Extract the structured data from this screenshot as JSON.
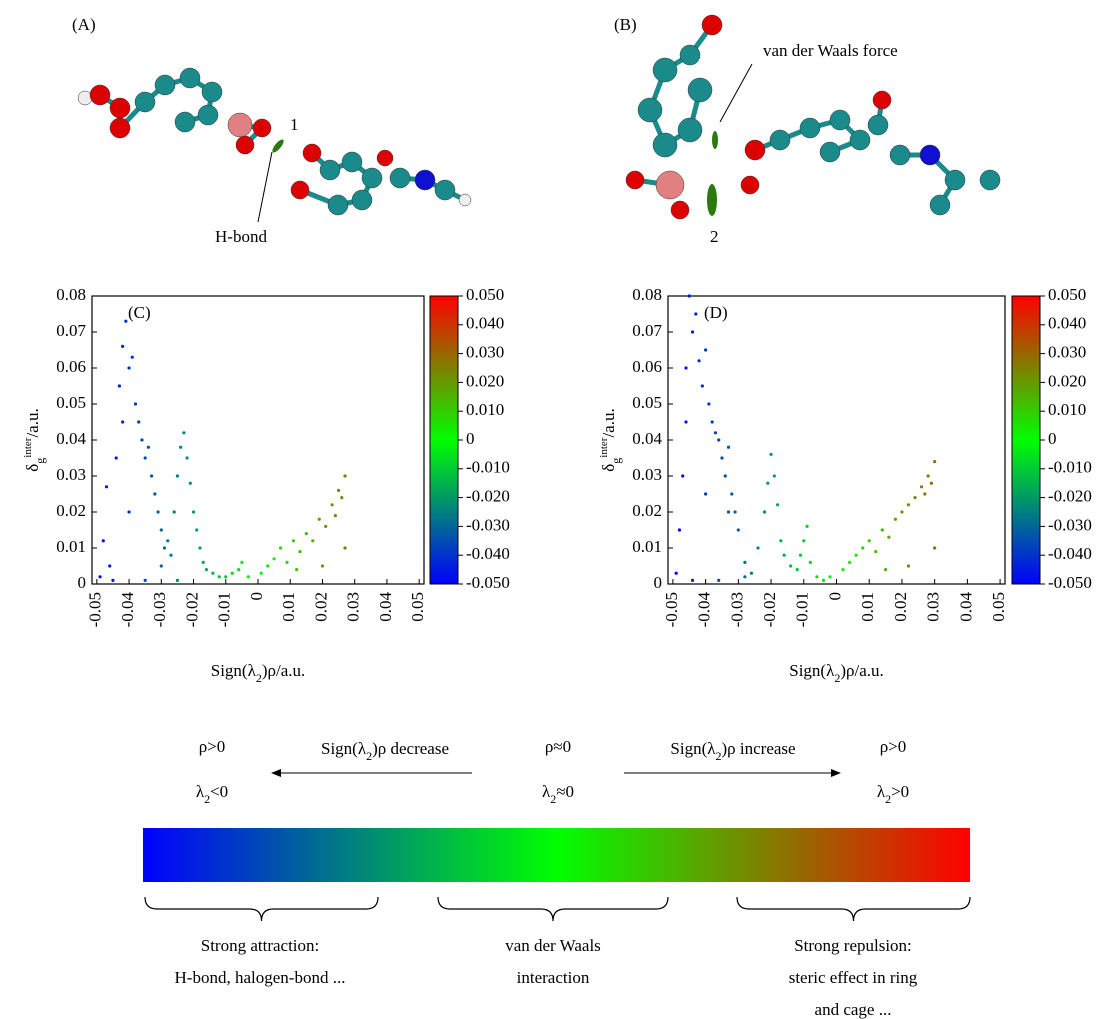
{
  "panels": {
    "a": {
      "label": "(A)",
      "bond_label": "1",
      "annotation": "H-bond"
    },
    "b": {
      "label": "(B)",
      "bond_label": "2",
      "annotation": "van der Waals force"
    }
  },
  "chart_data": [
    {
      "type": "scatter",
      "panel_label": "(C)",
      "x": [
        -0.049,
        -0.048,
        -0.047,
        -0.046,
        -0.044,
        -0.043,
        -0.042,
        -0.041,
        -0.04,
        -0.039,
        -0.038,
        -0.037,
        -0.036,
        -0.035,
        -0.034,
        -0.033,
        -0.032,
        -0.031,
        -0.03,
        -0.029,
        -0.028,
        -0.027,
        -0.026,
        -0.025,
        -0.024,
        -0.023,
        -0.022,
        -0.021,
        -0.02,
        -0.019,
        -0.018,
        -0.017,
        -0.016,
        -0.014,
        -0.012,
        -0.01,
        -0.008,
        -0.006,
        -0.005,
        -0.003,
        0.001,
        0.003,
        0.005,
        0.007,
        0.009,
        0.011,
        0.013,
        0.015,
        0.017,
        0.019,
        0.021,
        0.023,
        0.024,
        0.025,
        0.026,
        0.027,
        0.027,
        0.02,
        0.012,
        -0.045,
        -0.035,
        -0.025,
        -0.03,
        -0.04,
        -0.042
      ],
      "y": [
        0.002,
        0.012,
        0.027,
        0.005,
        0.035,
        0.055,
        0.066,
        0.073,
        0.06,
        0.063,
        0.05,
        0.045,
        0.04,
        0.035,
        0.038,
        0.03,
        0.025,
        0.02,
        0.015,
        0.01,
        0.012,
        0.008,
        0.02,
        0.03,
        0.038,
        0.042,
        0.035,
        0.028,
        0.02,
        0.015,
        0.01,
        0.006,
        0.004,
        0.003,
        0.002,
        0.002,
        0.003,
        0.004,
        0.006,
        0.002,
        0.003,
        0.005,
        0.007,
        0.01,
        0.006,
        0.012,
        0.009,
        0.014,
        0.012,
        0.018,
        0.016,
        0.022,
        0.019,
        0.026,
        0.024,
        0.03,
        0.01,
        0.005,
        0.004,
        0.001,
        0.001,
        0.001,
        0.005,
        0.02,
        0.045
      ],
      "xlim": [
        -0.0515,
        0.0515
      ],
      "xticks": [
        -0.05,
        -0.04,
        -0.03,
        -0.02,
        -0.01,
        0,
        0.01,
        0.02,
        0.03,
        0.04,
        0.05
      ],
      "ylim": [
        0,
        0.08
      ],
      "yticks": [
        0,
        0.01,
        0.02,
        0.03,
        0.04,
        0.05,
        0.06,
        0.07,
        0.08
      ],
      "xlabel": [
        "Sign(λ",
        "2",
        ")ρ/a.u."
      ],
      "ylabel": [
        "δ",
        "g",
        "inter",
        "/a.u."
      ],
      "colorbar": {
        "lim": [
          -0.05,
          0.05
        ],
        "colors": [
          "#0000ff",
          "#00ff00",
          "#ff0000"
        ],
        "ticks": [
          {
            "value": 0.05,
            "label": "0.050"
          },
          {
            "value": 0.04,
            "label": "0.040"
          },
          {
            "value": 0.03,
            "label": "0.030"
          },
          {
            "value": 0.02,
            "label": "0.020"
          },
          {
            "value": 0.01,
            "label": "0.010"
          },
          0,
          {
            "value": -0.01,
            "label": "-0.010"
          },
          {
            "value": -0.02,
            "label": "-0.020"
          },
          {
            "value": -0.03,
            "label": "-0.030"
          },
          {
            "value": -0.04,
            "label": "-0.040"
          },
          {
            "value": -0.05,
            "label": "-0.050"
          }
        ]
      }
    },
    {
      "type": "scatter",
      "panel_label": "(D)",
      "x": [
        -0.049,
        -0.048,
        -0.047,
        -0.046,
        -0.045,
        -0.044,
        -0.043,
        -0.042,
        -0.041,
        -0.04,
        -0.039,
        -0.038,
        -0.037,
        -0.036,
        -0.035,
        -0.034,
        -0.033,
        -0.032,
        -0.031,
        -0.03,
        -0.028,
        -0.026,
        -0.024,
        -0.022,
        -0.021,
        -0.02,
        -0.019,
        -0.018,
        -0.017,
        -0.016,
        -0.014,
        -0.012,
        -0.011,
        -0.01,
        -0.009,
        -0.008,
        -0.006,
        -0.004,
        -0.002,
        0.002,
        0.004,
        0.006,
        0.008,
        0.01,
        0.012,
        0.014,
        0.016,
        0.018,
        0.02,
        0.022,
        0.024,
        0.026,
        0.027,
        0.028,
        0.029,
        0.03,
        0.03,
        0.022,
        0.015,
        -0.044,
        -0.036,
        -0.028,
        -0.04,
        -0.046,
        -0.033
      ],
      "y": [
        0.003,
        0.015,
        0.03,
        0.045,
        0.08,
        0.07,
        0.075,
        0.062,
        0.055,
        0.065,
        0.05,
        0.045,
        0.042,
        0.04,
        0.035,
        0.03,
        0.038,
        0.025,
        0.02,
        0.015,
        0.006,
        0.003,
        0.01,
        0.02,
        0.028,
        0.036,
        0.03,
        0.022,
        0.012,
        0.008,
        0.005,
        0.004,
        0.008,
        0.012,
        0.016,
        0.006,
        0.002,
        0.001,
        0.002,
        0.004,
        0.006,
        0.008,
        0.01,
        0.012,
        0.009,
        0.015,
        0.013,
        0.018,
        0.02,
        0.022,
        0.024,
        0.027,
        0.025,
        0.03,
        0.028,
        0.034,
        0.01,
        0.005,
        0.004,
        0.001,
        0.001,
        0.002,
        0.025,
        0.06,
        0.02
      ],
      "xlim": [
        -0.0515,
        0.0515
      ],
      "xticks": [
        -0.05,
        -0.04,
        -0.03,
        -0.02,
        -0.01,
        0,
        0.01,
        0.02,
        0.03,
        0.04,
        0.05
      ],
      "ylim": [
        0,
        0.08
      ],
      "yticks": [
        0,
        0.01,
        0.02,
        0.03,
        0.04,
        0.05,
        0.06,
        0.07,
        0.08
      ],
      "xlabel": [
        "Sign(λ",
        "2",
        ")ρ/a.u."
      ],
      "ylabel": [
        "δ",
        "g",
        "inter",
        "/a.u."
      ],
      "colorbar": {
        "lim": [
          -0.05,
          0.05
        ],
        "colors": [
          "#0000ff",
          "#00ff00",
          "#ff0000"
        ],
        "ticks": [
          {
            "value": 0.05,
            "label": "0.050"
          },
          {
            "value": 0.04,
            "label": "0.040"
          },
          {
            "value": 0.03,
            "label": "0.030"
          },
          {
            "value": 0.02,
            "label": "0.020"
          },
          {
            "value": 0.01,
            "label": "0.010"
          },
          0,
          {
            "value": -0.01,
            "label": "-0.010"
          },
          {
            "value": -0.02,
            "label": "-0.020"
          },
          {
            "value": -0.03,
            "label": "-0.030"
          },
          {
            "value": -0.04,
            "label": "-0.040"
          },
          {
            "value": -0.05,
            "label": "-0.050"
          }
        ]
      }
    }
  ],
  "scale": {
    "left": {
      "rho": "ρ>0",
      "lambda": [
        "λ",
        "2",
        "<0"
      ]
    },
    "decrease": [
      "Sign(λ",
      "2",
      ")ρ decrease"
    ],
    "middle": {
      "rho": "ρ≈0",
      "lambda": [
        "λ",
        "2",
        "≈0"
      ]
    },
    "increase": [
      "Sign(λ",
      "2",
      ")ρ increase"
    ],
    "right": {
      "rho": "ρ>0",
      "lambda": [
        "λ",
        "2",
        ">0"
      ]
    },
    "colors": [
      "#0000ff",
      "#00ff00",
      "#ff0000"
    ],
    "groups": [
      [
        "Strong attraction:",
        "H-bond, halogen-bond ..."
      ],
      [
        "van der Waals",
        "interaction"
      ],
      [
        "Strong repulsion:",
        "steric effect in ring",
        "and cage ..."
      ]
    ]
  }
}
